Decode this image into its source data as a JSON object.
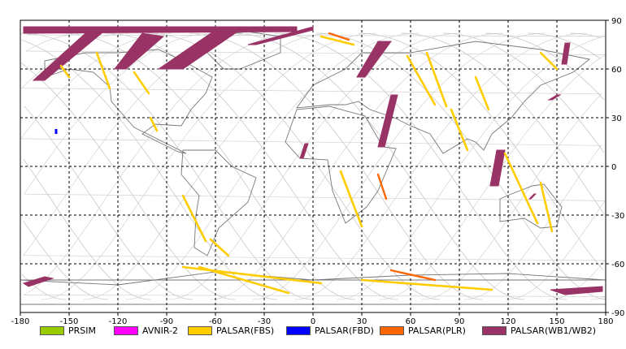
{
  "chart_data": {
    "type": "map",
    "projection": "equirectangular",
    "xlim": [
      -180,
      180
    ],
    "ylim": [
      -90,
      90
    ],
    "x_ticks": [
      "-180",
      "-150",
      "-120",
      "-90",
      "-60",
      "-30",
      "0",
      "30",
      "60",
      "90",
      "120",
      "150",
      "180"
    ],
    "y_ticks": [
      "90",
      "60",
      "30",
      "0",
      "-30",
      "-60",
      "-90"
    ],
    "grid": "dashed",
    "legend": [
      {
        "name": "PRSIM",
        "color": "#99cc00"
      },
      {
        "name": "AVNIR-2",
        "color": "#ff00ff"
      },
      {
        "name": "PALSAR(FBS)",
        "color": "#ffcc00"
      },
      {
        "name": "PALSAR(FBD)",
        "color": "#0000ff"
      },
      {
        "name": "PALSAR(PLR)",
        "color": "#ff6600"
      },
      {
        "name": "PALSAR(WB1/WB2)",
        "color": "#993366"
      }
    ],
    "wb_swaths": [
      {
        "lon": [
          -178,
          -10,
          -10,
          -178
        ],
        "lat": [
          86,
          86,
          83,
          82
        ]
      },
      {
        "lon": [
          -172,
          -140,
          -130,
          -165
        ],
        "lat": [
          53,
          82,
          82,
          53
        ]
      },
      {
        "lon": [
          -122,
          -105,
          -92,
          -115
        ],
        "lat": [
          60,
          82,
          80,
          60
        ]
      },
      {
        "lon": [
          -95,
          -60,
          -45,
          -80
        ],
        "lat": [
          60,
          84,
          84,
          60
        ]
      },
      {
        "lon": [
          -40,
          0,
          0,
          -35
        ],
        "lat": [
          75,
          86,
          84,
          75
        ]
      },
      {
        "lon": [
          27,
          40,
          48,
          32
        ],
        "lat": [
          55,
          77,
          77,
          55
        ]
      },
      {
        "lon": [
          40,
          48,
          52,
          44
        ],
        "lat": [
          12,
          44,
          44,
          12
        ]
      },
      {
        "lon": [
          -8,
          -5,
          -3,
          -6
        ],
        "lat": [
          5,
          14,
          14,
          5
        ]
      },
      {
        "lon": [
          109,
          113,
          118,
          114
        ],
        "lat": [
          -12,
          10,
          10,
          -12
        ]
      },
      {
        "lon": [
          145,
          150,
          152,
          147
        ],
        "lat": [
          41,
          44,
          44,
          41
        ]
      },
      {
        "lon": [
          153,
          155,
          158,
          156
        ],
        "lat": [
          63,
          76,
          76,
          63
        ]
      },
      {
        "lon": [
          133,
          136,
          137,
          134
        ],
        "lat": [
          -20,
          -17,
          -17,
          -20
        ]
      },
      {
        "lon": [
          -178,
          -165,
          -160,
          -175
        ],
        "lat": [
          -72,
          -68,
          -69,
          -74
        ]
      },
      {
        "lon": [
          146,
          178,
          178,
          155
        ],
        "lat": [
          -76,
          -74,
          -77,
          -79
        ]
      }
    ],
    "fbs_strips": [
      {
        "lon": [
          -155,
          -150
        ],
        "lat": [
          62,
          55
        ]
      },
      {
        "lon": [
          -133,
          -125
        ],
        "lat": [
          70,
          48
        ]
      },
      {
        "lon": [
          -110,
          -101
        ],
        "lat": [
          58,
          45
        ]
      },
      {
        "lon": [
          -100,
          -96
        ],
        "lat": [
          30,
          22
        ]
      },
      {
        "lon": [
          -80,
          -66
        ],
        "lat": [
          -18,
          -46
        ]
      },
      {
        "lon": [
          -63,
          -52
        ],
        "lat": [
          -45,
          -55
        ]
      },
      {
        "lon": [
          -70,
          -15
        ],
        "lat": [
          -62,
          -78
        ]
      },
      {
        "lon": [
          5,
          25
        ],
        "lat": [
          80,
          75
        ]
      },
      {
        "lon": [
          17,
          30
        ],
        "lat": [
          -3,
          -37
        ]
      },
      {
        "lon": [
          58,
          75
        ],
        "lat": [
          68,
          38
        ]
      },
      {
        "lon": [
          70,
          82
        ],
        "lat": [
          70,
          37
        ]
      },
      {
        "lon": [
          85,
          95
        ],
        "lat": [
          35,
          10
        ]
      },
      {
        "lon": [
          100,
          108
        ],
        "lat": [
          55,
          35
        ]
      },
      {
        "lon": [
          118,
          138
        ],
        "lat": [
          8,
          -35
        ]
      },
      {
        "lon": [
          140,
          150
        ],
        "lat": [
          70,
          60
        ]
      },
      {
        "lon": [
          140,
          147
        ],
        "lat": [
          -10,
          -40
        ]
      },
      {
        "lon": [
          30,
          110
        ],
        "lat": [
          -70,
          -76
        ]
      },
      {
        "lon": [
          -80,
          5
        ],
        "lat": [
          -62,
          -72
        ]
      }
    ],
    "plr_strips": [
      {
        "lon": [
          40,
          45
        ],
        "lat": [
          -5,
          -20
        ]
      },
      {
        "lon": [
          48,
          75
        ],
        "lat": [
          -64,
          -70
        ]
      },
      {
        "lon": [
          10,
          22
        ],
        "lat": [
          82,
          78
        ]
      }
    ],
    "fbd_points": [
      {
        "lon": -158,
        "lat": 21
      }
    ]
  }
}
